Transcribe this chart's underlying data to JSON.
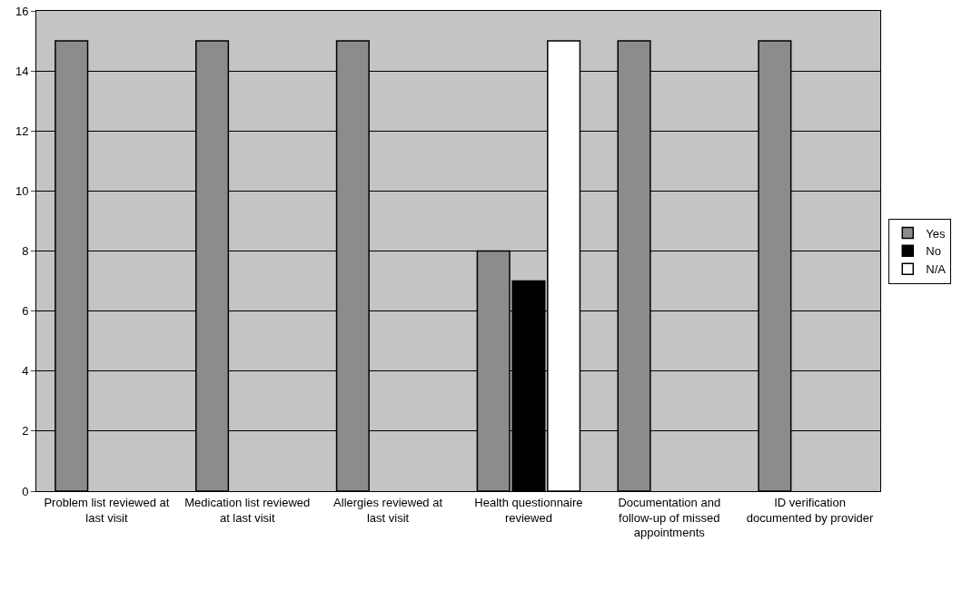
{
  "chart_data": {
    "type": "bar",
    "categories": [
      "Problem list reviewed at last visit",
      "Medication list reviewed at last visit",
      "Allergies reviewed at last visit",
      "Health questionnaire reviewed",
      "Documentation and follow-up of missed appointments",
      "ID verification documented by provider"
    ],
    "series": [
      {
        "name": "Yes",
        "color": "#8c8c8c",
        "values": [
          15,
          15,
          15,
          8,
          15,
          15
        ]
      },
      {
        "name": "No",
        "color": "#000000",
        "values": [
          0,
          0,
          0,
          7,
          0,
          0
        ]
      },
      {
        "name": "N/A",
        "color": "#ffffff",
        "values": [
          0,
          0,
          0,
          15,
          0,
          0
        ]
      }
    ],
    "ylim": [
      0,
      16
    ],
    "yticks": [
      0,
      2,
      4,
      6,
      8,
      10,
      12,
      14,
      16
    ],
    "grid": "y",
    "legend": "right"
  }
}
